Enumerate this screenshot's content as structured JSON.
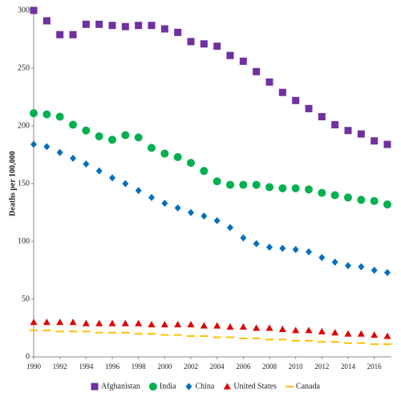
{
  "chart_data": {
    "type": "scatter",
    "y_label": "Deaths per 100,000",
    "x": [
      1990,
      1991,
      1992,
      1993,
      1994,
      1995,
      1996,
      1997,
      1998,
      1999,
      2000,
      2001,
      2002,
      2003,
      2004,
      2005,
      2006,
      2007,
      2008,
      2009,
      2010,
      2011,
      2012,
      2013,
      2014,
      2015,
      2016,
      2017
    ],
    "xlim": [
      1990,
      2017
    ],
    "xticks": [
      1990,
      1992,
      1994,
      1996,
      1998,
      2000,
      2002,
      2004,
      2006,
      2008,
      2010,
      2012,
      2014,
      2016
    ],
    "ylim": [
      0,
      300
    ],
    "yticks": [
      0,
      50,
      100,
      150,
      200,
      250,
      300
    ],
    "legend": "bottom",
    "series": [
      {
        "name": "Afghanistan",
        "color": "#7030a0",
        "marker": "square",
        "values": [
          300,
          291,
          279,
          279,
          288,
          288,
          287,
          286,
          287,
          287,
          284,
          281,
          273,
          271,
          269,
          261,
          256,
          247,
          238,
          229,
          222,
          215,
          208,
          201,
          196,
          193,
          187,
          184
        ]
      },
      {
        "name": "India",
        "color": "#00b050",
        "marker": "circle",
        "values": [
          211,
          210,
          208,
          201,
          196,
          191,
          188,
          192,
          190,
          181,
          176,
          173,
          168,
          161,
          152,
          149,
          149,
          149,
          147,
          146,
          146,
          145,
          142,
          140,
          138,
          136,
          135,
          132
        ]
      },
      {
        "name": "China",
        "color": "#0070c0",
        "marker": "diamond",
        "values": [
          184,
          182,
          177,
          172,
          167,
          161,
          155,
          150,
          144,
          138,
          133,
          129,
          125,
          122,
          118,
          112,
          103,
          98,
          95,
          94,
          93,
          91,
          86,
          82,
          79,
          78,
          75,
          73
        ]
      },
      {
        "name": "United States",
        "color": "#e00000",
        "marker": "triangle",
        "values": [
          30,
          30,
          30,
          30,
          29,
          29,
          29,
          29,
          29,
          28,
          28,
          28,
          28,
          27,
          27,
          26,
          26,
          25,
          25,
          24,
          23,
          23,
          22,
          21,
          20,
          20,
          19,
          18
        ]
      },
      {
        "name": "Canada",
        "color": "#ffc000",
        "marker": "dash",
        "values": [
          23,
          23,
          22,
          22,
          22,
          21,
          21,
          21,
          20,
          20,
          19,
          19,
          18,
          18,
          17,
          17,
          16,
          16,
          15,
          15,
          14,
          14,
          13,
          13,
          12,
          12,
          11,
          11
        ]
      }
    ]
  }
}
